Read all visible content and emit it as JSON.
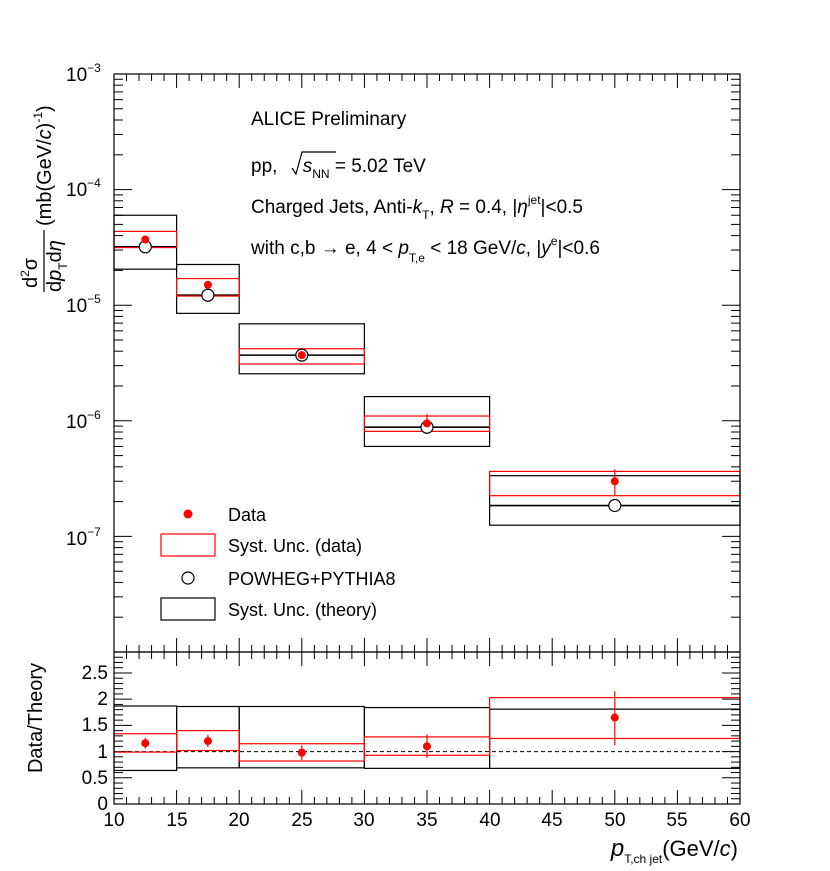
{
  "chart_data": [
    {
      "type": "scatter",
      "panel": "top",
      "yscale": "log",
      "xlim": [
        10,
        60
      ],
      "ylim": [
        1e-08,
        0.001
      ],
      "ylabel_parts": {
        "num": "d",
        "num_sup": "2",
        "num_sym": "σ",
        "den_pre": "d",
        "den_p": "p",
        "den_sub": "T",
        "den_post": "d",
        "den_eta": "η",
        "units_pre": "(mb(GeV/",
        "units_c": "c",
        "units_post": ")",
        "units_sup": "-1",
        "units_close": ")"
      },
      "ytick_labels": [
        {
          "value": 1e-07,
          "base": "10",
          "exp": "−7"
        },
        {
          "value": 1e-06,
          "base": "10",
          "exp": "−6"
        },
        {
          "value": 1e-05,
          "base": "10",
          "exp": "−5"
        },
        {
          "value": 0.0001,
          "base": "10",
          "exp": "−4"
        },
        {
          "value": 0.001,
          "base": "10",
          "exp": "−3"
        }
      ],
      "annotations": {
        "line1": "ALICE Preliminary",
        "line2": {
          "pre": "pp, ",
          "s": "s",
          "sub": "NN",
          "post": " = 5.02 TeV"
        },
        "line3": {
          "pre": "Charged Jets, Anti-",
          "k": "k",
          "ksub": "T",
          "mid": ", ",
          "R": "R",
          "post": " = 0.4, |",
          "eta": "η",
          "sup": "jet",
          "end": "|<0.5"
        },
        "line4": {
          "pre": "with c,b → e, 4 < ",
          "p": "p",
          "psub": "T,e",
          "mid": " < 18 GeV/",
          "c": "c",
          "mid2": ", |",
          "y": "y",
          "ysup": "e",
          "end": "|<0.6"
        }
      },
      "series": [
        {
          "name": "Data",
          "color": "#ff0000",
          "bins": [
            [
              10,
              15
            ],
            [
              15,
              20
            ],
            [
              20,
              30
            ],
            [
              30,
              40
            ],
            [
              40,
              60
            ]
          ],
          "x": [
            12.5,
            17.5,
            25,
            35,
            50
          ],
          "values": [
            3.7e-05,
            1.5e-05,
            3.7e-06,
            9.5e-07,
            3e-07
          ],
          "stat_err_low": [
            3.4e-05,
            1.38e-05,
            3.3e-06,
            7.9e-07,
            2.25e-07
          ],
          "stat_err_high": [
            4e-05,
            1.62e-05,
            4.2e-06,
            1.15e-06,
            3.8e-07
          ],
          "syst_low": [
            3.15e-05,
            1.2e-05,
            3.1e-06,
            8.1e-07,
            2.25e-07
          ],
          "syst_high": [
            4.35e-05,
            1.7e-05,
            4.2e-06,
            1.1e-06,
            3.65e-07
          ]
        },
        {
          "name": "POWHEG+PYTHIA8",
          "color": "#000000",
          "bins": [
            [
              10,
              15
            ],
            [
              15,
              20
            ],
            [
              20,
              30
            ],
            [
              30,
              40
            ],
            [
              40,
              60
            ]
          ],
          "x": [
            12.5,
            17.5,
            25,
            35,
            50
          ],
          "values": [
            3.2e-05,
            1.22e-05,
            3.7e-06,
            8.8e-07,
            1.85e-07
          ],
          "syst_low": [
            2.05e-05,
            8.5e-06,
            2.55e-06,
            6e-07,
            1.25e-07
          ],
          "syst_high": [
            6e-05,
            2.25e-05,
            6.9e-06,
            1.62e-06,
            3.35e-07
          ]
        }
      ],
      "legend": [
        {
          "label": "Data",
          "kind": "marker-filled"
        },
        {
          "label": "Syst. Unc. (data)",
          "kind": "box-red"
        },
        {
          "label": "POWHEG+PYTHIA8",
          "kind": "marker-open"
        },
        {
          "label": "Syst. Unc. (theory)",
          "kind": "box-black"
        }
      ]
    },
    {
      "type": "scatter",
      "panel": "bottom",
      "xlim": [
        10,
        60
      ],
      "ylim": [
        0,
        2.9
      ],
      "ylabel": "Data/Theory",
      "reference_line": 1,
      "yticks": [
        0,
        0.5,
        1,
        1.5,
        2,
        2.5
      ],
      "ytick_labels": [
        "0",
        "0.5",
        "1",
        "1.5",
        "2",
        "2.5"
      ],
      "xticks": [
        10,
        15,
        20,
        25,
        30,
        35,
        40,
        45,
        50,
        55,
        60
      ],
      "xtick_labels": [
        "10",
        "15",
        "20",
        "25",
        "30",
        "35",
        "40",
        "45",
        "50",
        "55",
        "60"
      ],
      "xlabel_parts": {
        "p": "p",
        "sub": "T,ch jet",
        "units_pre": "(GeV/",
        "c": "c",
        "units_post": ")"
      },
      "series": [
        {
          "name": "Data/Theory",
          "color": "#ff0000",
          "bins": [
            [
              10,
              15
            ],
            [
              15,
              20
            ],
            [
              20,
              30
            ],
            [
              30,
              40
            ],
            [
              40,
              60
            ]
          ],
          "x": [
            12.5,
            17.5,
            25,
            35,
            50
          ],
          "values": [
            1.16,
            1.2,
            0.98,
            1.1,
            1.65
          ],
          "stat_err_low": [
            1.06,
            1.08,
            0.84,
            0.88,
            1.12
          ],
          "stat_err_high": [
            1.26,
            1.32,
            1.12,
            1.33,
            2.15
          ],
          "syst_low": [
            0.99,
            1.02,
            0.82,
            0.93,
            1.25
          ],
          "syst_high": [
            1.34,
            1.4,
            1.15,
            1.28,
            2.03
          ]
        },
        {
          "name": "Theory uncertainty",
          "color": "#000000",
          "bins": [
            [
              10,
              15
            ],
            [
              15,
              20
            ],
            [
              20,
              30
            ],
            [
              30,
              40
            ],
            [
              40,
              60
            ]
          ],
          "syst_low": [
            0.64,
            0.69,
            0.69,
            0.68,
            0.68
          ],
          "syst_high": [
            1.87,
            1.86,
            1.86,
            1.84,
            1.81
          ]
        }
      ]
    }
  ]
}
